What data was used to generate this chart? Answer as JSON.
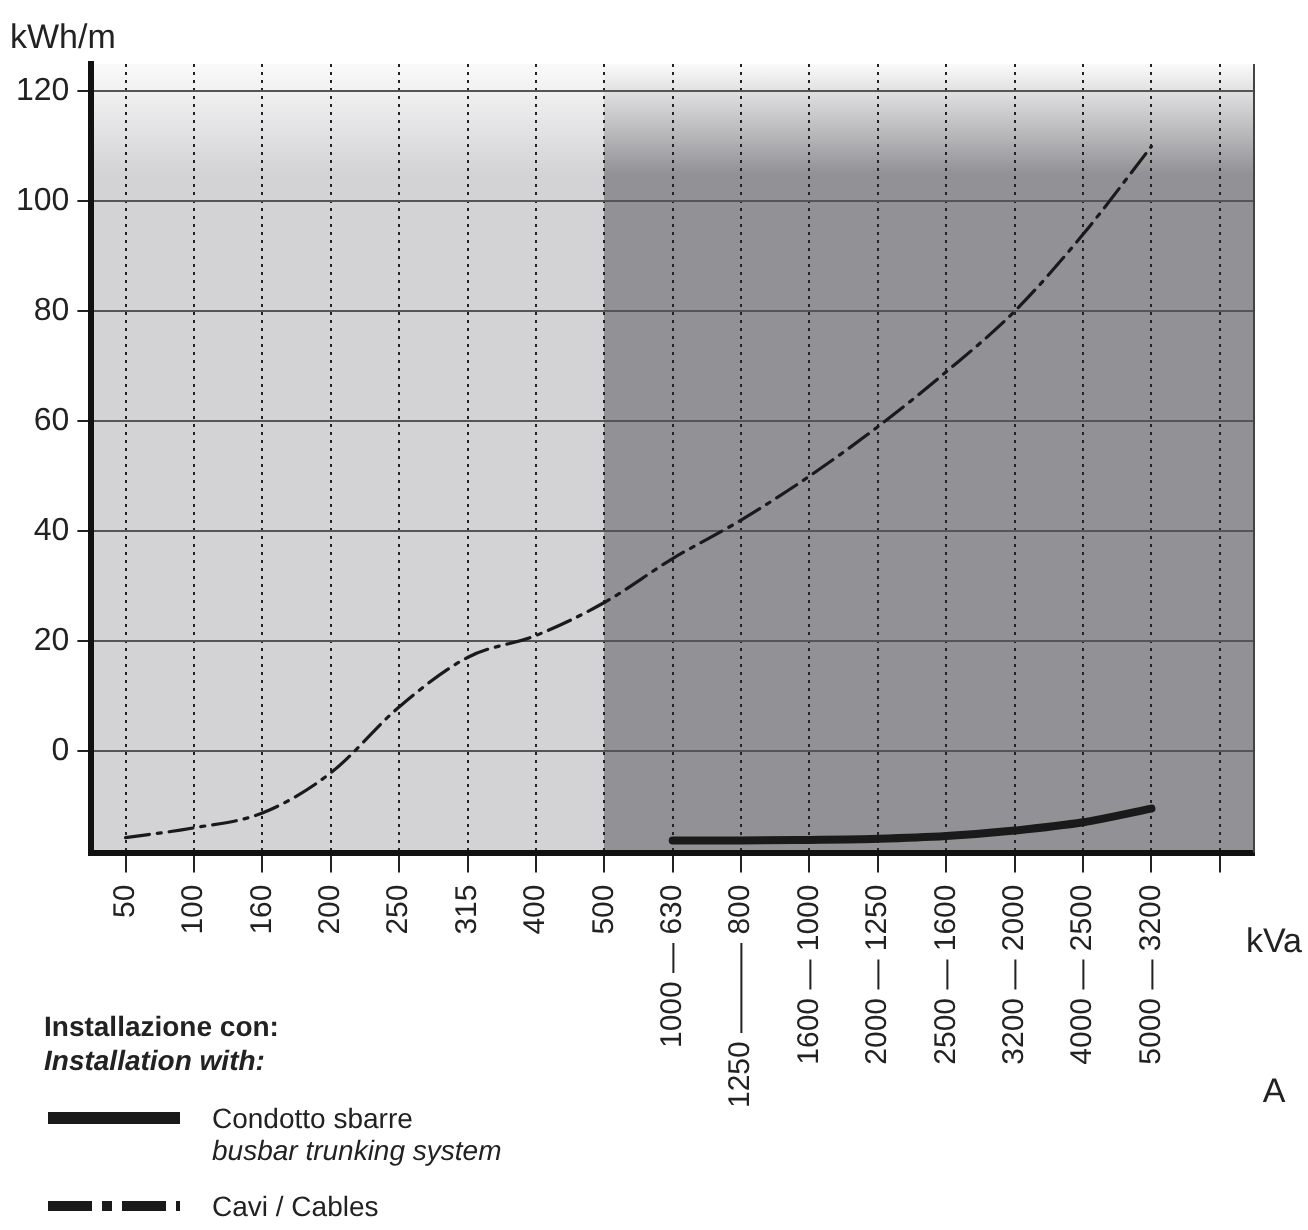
{
  "chart_data": {
    "type": "line",
    "ylabel": "kWh/m",
    "xlabel": "kVa",
    "legend_title": "Installazione con:\nInstallation with:",
    "annotations": [
      "A"
    ],
    "categories": [
      "50",
      "100",
      "160",
      "200",
      "250",
      "315",
      "400",
      "500",
      "1000 — 630",
      "1250 ——— 800",
      "1600 — 1000",
      "2000 — 1250",
      "2500 — 1600",
      "3200 — 2000",
      "4000 — 2500",
      "5000 — 3200",
      null
    ],
    "series": [
      {
        "name": "Condotto sbarre\nbusbar trunking system",
        "color": "#1a1a1a",
        "line_style": "solid",
        "values": [
          null,
          null,
          null,
          null,
          null,
          null,
          null,
          null,
          -16.3,
          -16.3,
          -16.2,
          -16,
          -15.5,
          -14.5,
          -13,
          -10.5,
          null
        ]
      },
      {
        "name": "Cavi / Cables",
        "color": "#1a1a1a",
        "line_style": "dashed",
        "values": [
          -15.8,
          -14,
          -11.3,
          -4,
          8,
          17,
          21,
          27,
          35,
          42,
          50,
          59,
          69,
          80,
          94,
          110,
          null
        ]
      }
    ],
    "ylim": [
      -18.5,
      125
    ],
    "yticks": [
      0,
      20,
      40,
      60,
      80,
      100,
      120
    ],
    "grid": true,
    "legend": "bottom left",
    "marker": "none"
  }
}
